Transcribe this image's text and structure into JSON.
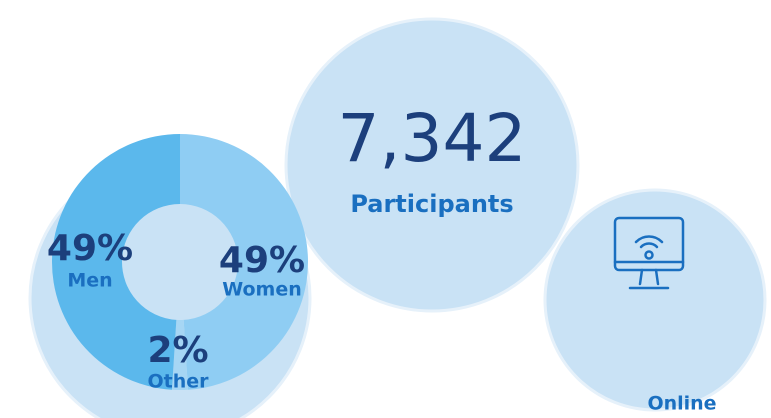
{
  "chart_data": {
    "type": "pie",
    "categories": [
      "Women",
      "Other",
      "Men"
    ],
    "values": [
      49,
      2,
      49
    ],
    "value_labels": [
      "49%",
      "2%",
      "49%"
    ],
    "colors": [
      "#8fcdf3",
      "#a6d6f4",
      "#5bb8ec"
    ]
  },
  "participants": {
    "count": "7,342",
    "label": "Participants"
  },
  "online": {
    "label": "Online"
  }
}
